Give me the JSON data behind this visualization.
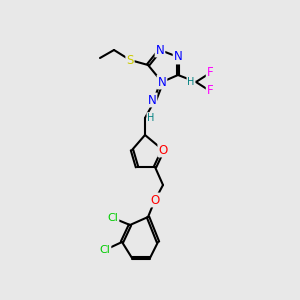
{
  "background_color": "#e8e8e8",
  "bond_color": "#000000",
  "atom_colors": {
    "N": "#0000ff",
    "S": "#cccc00",
    "F": "#ff00ff",
    "O": "#ff0000",
    "Cl": "#00cc00",
    "C": "#000000",
    "H": "#008080"
  },
  "figsize": [
    3.0,
    3.0
  ],
  "dpi": 100
}
